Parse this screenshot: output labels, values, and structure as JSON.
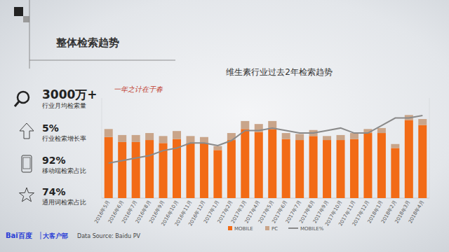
{
  "header": {
    "title": "整体检索趋势"
  },
  "stats": [
    {
      "value": "3000万+",
      "label": "行业月均检索量"
    },
    {
      "value": "5%",
      "label": "行业检索增长率"
    },
    {
      "value": "92%",
      "label": "移动端检索占比"
    },
    {
      "value": "74%",
      "label": "通用词检索占比"
    }
  ],
  "chart_data": {
    "type": "bar",
    "title": "维生素行业过去2年检索趋势",
    "annotations": [
      "一年之计在于春"
    ],
    "categories": [
      "2016年5月",
      "2016年6月",
      "2016年7月",
      "2016年8月",
      "2016年9月",
      "2016年10月",
      "2016年11月",
      "2016年12月",
      "2017年1月",
      "2017年2月",
      "2017年3月",
      "2017年4月",
      "2017年5月",
      "2017年6月",
      "2017年7月",
      "2017年8月",
      "2017年9月",
      "2017年10月",
      "2017年11月",
      "2017年12月",
      "2018年1月",
      "2018年2月",
      "2018年3月",
      "2018年4月"
    ],
    "series": [
      {
        "name": "MOBILE",
        "color": "#f26b16",
        "type": "bar",
        "values": [
          61,
          56,
          56,
          58,
          55,
          59,
          55,
          55,
          48,
          58,
          69,
          66,
          69,
          59,
          58,
          62,
          58,
          58,
          59,
          65,
          65,
          50,
          78,
          73
        ]
      },
      {
        "name": "PC",
        "color": "#c9a58a",
        "type": "bar",
        "values": [
          8,
          7,
          7,
          7,
          7,
          8,
          7,
          6,
          4,
          7,
          8,
          8,
          8,
          6,
          6,
          6,
          4,
          5,
          6,
          4,
          5,
          4,
          5,
          6
        ]
      },
      {
        "name": "MOBILE%",
        "color": "#8a8a8a",
        "type": "line",
        "axis": "y2",
        "values": [
          74,
          75,
          76,
          77,
          79,
          80,
          82,
          82,
          81,
          83,
          87,
          87,
          88,
          87,
          86,
          86,
          87,
          88,
          86,
          86,
          89,
          92,
          92,
          93
        ]
      }
    ],
    "stacked": true,
    "ylim": [
      0,
      100
    ],
    "y2lim": [
      60,
      100
    ],
    "tick_labels": "x",
    "grid": false,
    "legend": "bottom"
  },
  "footer": {
    "logo": "Bai百度",
    "department": "大客户部",
    "source": "Data Source: Baidu PV"
  }
}
